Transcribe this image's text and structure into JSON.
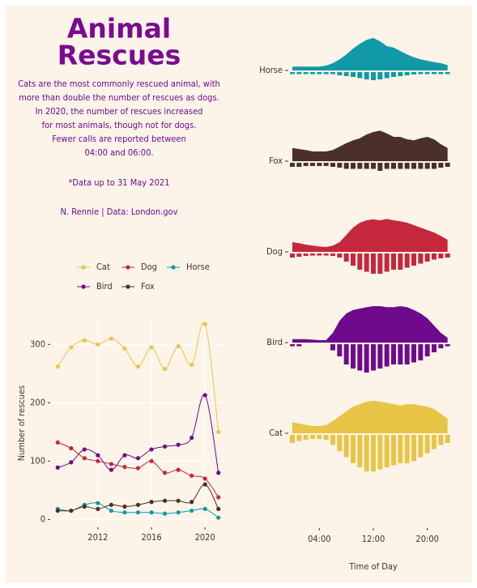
{
  "header": {
    "title": [
      "Animal",
      "Rescues"
    ],
    "subtitle": [
      "Cats are the most commonly rescued animal, with",
      "more than double the number of rescues as dogs.",
      "In 2020, the number of rescues increased",
      "for most animals, though not for dogs.",
      "Fewer calls are reported between",
      "04:00 and 06:00."
    ],
    "note": "*Data up to 31 May 2021",
    "credit": "N. Rennie | Data: London.gov"
  },
  "chart_data": [
    {
      "type": "line",
      "ylabel": "Number of rescues",
      "x": [
        2009,
        2010,
        2011,
        2012,
        2013,
        2014,
        2015,
        2016,
        2017,
        2018,
        2019,
        2020,
        2021
      ],
      "xlim": [
        2008.5,
        2021.5
      ],
      "xticks": [
        2012,
        2016,
        2020
      ],
      "ylim": [
        -12,
        342
      ],
      "yticks": [
        0,
        100,
        200,
        300
      ],
      "grid": true,
      "legend": "top",
      "series": [
        {
          "name": "Cat",
          "color": "#e8c547",
          "values": [
            262,
            295,
            307,
            300,
            310,
            293,
            262,
            295,
            258,
            297,
            265,
            335,
            150
          ]
        },
        {
          "name": "Dog",
          "color": "#c5283d",
          "values": [
            132,
            122,
            105,
            100,
            95,
            90,
            88,
            100,
            80,
            85,
            75,
            70,
            38
          ]
        },
        {
          "name": "Horse",
          "color": "#1199a8",
          "values": [
            18,
            15,
            25,
            28,
            15,
            12,
            12,
            12,
            10,
            12,
            15,
            18,
            3
          ]
        },
        {
          "name": "Bird",
          "color": "#6f0a8c",
          "values": [
            89,
            98,
            120,
            110,
            85,
            110,
            105,
            120,
            125,
            128,
            140,
            213,
            80
          ]
        },
        {
          "name": "Fox",
          "color": "#4a3028",
          "values": [
            15,
            15,
            22,
            18,
            25,
            22,
            25,
            30,
            32,
            32,
            30,
            60,
            18
          ]
        }
      ]
    },
    {
      "type": "ridgeline",
      "xlabel": "Time of Day",
      "x": [
        0,
        1,
        2,
        3,
        4,
        5,
        6,
        7,
        8,
        9,
        10,
        11,
        12,
        13,
        14,
        15,
        16,
        17,
        18,
        19,
        20,
        21,
        22,
        23
      ],
      "xlim": [
        0,
        24
      ],
      "xticks": [
        {
          "value": 4,
          "label": "04:00"
        },
        {
          "value": 12,
          "label": "12:00"
        },
        {
          "value": 20,
          "label": "20:00"
        }
      ],
      "series": [
        {
          "name": "Horse",
          "color": "#1199a8",
          "density": [
            0.03,
            0.03,
            0.03,
            0.03,
            0.03,
            0.05,
            0.1,
            0.18,
            0.28,
            0.4,
            0.5,
            0.58,
            0.62,
            0.55,
            0.45,
            0.42,
            0.35,
            0.28,
            0.22,
            0.18,
            0.15,
            0.12,
            0.1,
            0.06
          ],
          "counts": [
            0.05,
            0.05,
            0.05,
            0.05,
            0.05,
            0.05,
            0.05,
            0.08,
            0.1,
            0.12,
            0.15,
            0.18,
            0.2,
            0.18,
            0.15,
            0.12,
            0.1,
            0.08,
            0.06,
            0.05,
            0.05,
            0.05,
            0.05,
            0.05
          ]
        },
        {
          "name": "Fox",
          "color": "#4a3028",
          "density": [
            0.22,
            0.2,
            0.18,
            0.15,
            0.15,
            0.15,
            0.18,
            0.25,
            0.32,
            0.38,
            0.42,
            0.5,
            0.55,
            0.58,
            0.52,
            0.45,
            0.45,
            0.4,
            0.38,
            0.42,
            0.45,
            0.4,
            0.3,
            0.22
          ],
          "counts": [
            0.1,
            0.1,
            0.08,
            0.08,
            0.08,
            0.08,
            0.1,
            0.12,
            0.15,
            0.15,
            0.15,
            0.15,
            0.15,
            0.2,
            0.15,
            0.15,
            0.15,
            0.15,
            0.15,
            0.15,
            0.15,
            0.15,
            0.12,
            0.1
          ]
        },
        {
          "name": "Dog",
          "color": "#c5283d",
          "density": [
            0.15,
            0.13,
            0.1,
            0.08,
            0.06,
            0.05,
            0.08,
            0.15,
            0.3,
            0.45,
            0.55,
            0.6,
            0.62,
            0.6,
            0.63,
            0.6,
            0.58,
            0.55,
            0.5,
            0.45,
            0.4,
            0.35,
            0.28,
            0.2
          ],
          "counts": [
            0.1,
            0.08,
            0.06,
            0.05,
            0.05,
            0.05,
            0.06,
            0.1,
            0.2,
            0.3,
            0.4,
            0.45,
            0.5,
            0.5,
            0.45,
            0.4,
            0.4,
            0.35,
            0.3,
            0.25,
            0.2,
            0.15,
            0.12,
            0.1
          ]
        },
        {
          "name": "Bird",
          "color": "#6f0a8c",
          "density": [
            0.02,
            0.02,
            0.02,
            0.01,
            0,
            0,
            0.15,
            0.4,
            0.55,
            0.62,
            0.65,
            0.68,
            0.7,
            0.7,
            0.68,
            0.68,
            0.7,
            0.68,
            0.62,
            0.55,
            0.45,
            0.3,
            0.15,
            0.05
          ],
          "counts": [
            0.05,
            0.05,
            0,
            0,
            0,
            0,
            0.15,
            0.3,
            0.5,
            0.6,
            0.65,
            0.7,
            0.65,
            0.6,
            0.55,
            0.5,
            0.5,
            0.5,
            0.45,
            0.4,
            0.3,
            0.2,
            0.1,
            0.05
          ]
        },
        {
          "name": "Cat",
          "color": "#e8c547",
          "density": [
            0.18,
            0.15,
            0.12,
            0.1,
            0.1,
            0.12,
            0.2,
            0.3,
            0.4,
            0.5,
            0.55,
            0.6,
            0.62,
            0.6,
            0.58,
            0.55,
            0.52,
            0.55,
            0.55,
            0.52,
            0.5,
            0.45,
            0.35,
            0.25
          ],
          "counts": [
            0.2,
            0.15,
            0.12,
            0.1,
            0.1,
            0.12,
            0.25,
            0.4,
            0.55,
            0.7,
            0.8,
            0.9,
            0.9,
            0.85,
            0.8,
            0.75,
            0.7,
            0.7,
            0.65,
            0.55,
            0.45,
            0.35,
            0.25,
            0.2
          ]
        }
      ]
    }
  ]
}
